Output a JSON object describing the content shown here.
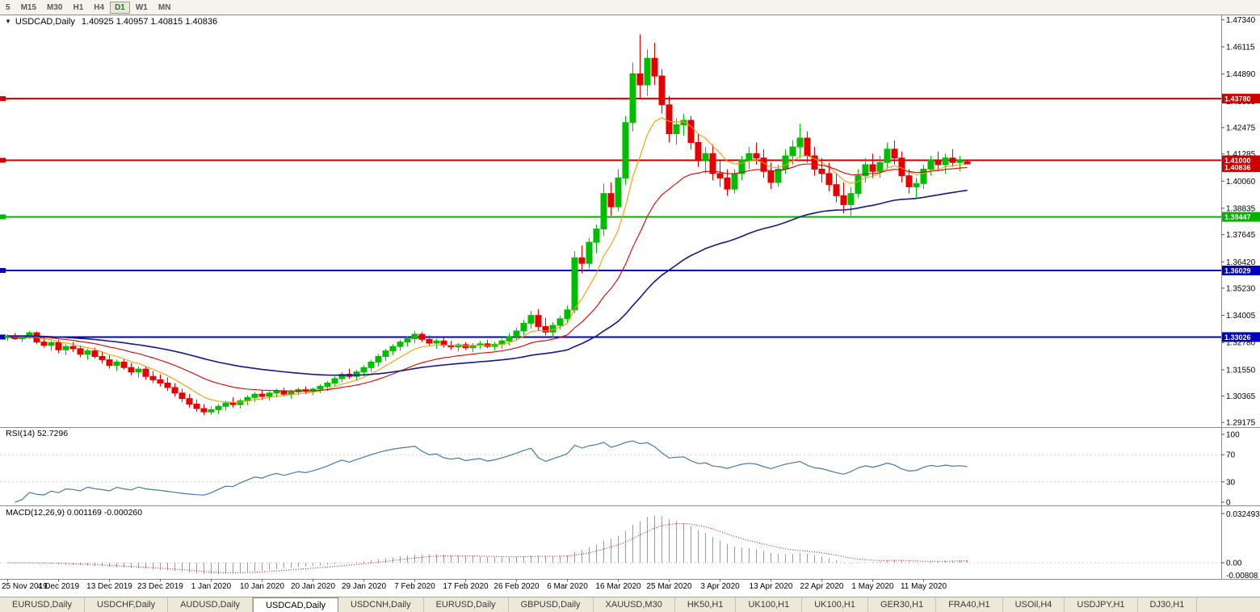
{
  "toolbar": {
    "timeframes": [
      {
        "label": "5",
        "active": false
      },
      {
        "label": "M15",
        "active": false
      },
      {
        "label": "M30",
        "active": false
      },
      {
        "label": "H1",
        "active": false
      },
      {
        "label": "H4",
        "active": false
      },
      {
        "label": "D1",
        "active": true
      },
      {
        "label": "W1",
        "active": false
      },
      {
        "label": "MN",
        "active": false
      }
    ]
  },
  "header": {
    "dropdown_icon": "▼",
    "symbol": "USDCAD,Daily",
    "quote": "1.40925 1.40957 1.40815 1.40836"
  },
  "labels": {
    "rsi": "RSI(14) 52.7296",
    "macd": "MACD(12,26,9) 0.001169 -0.000260"
  },
  "tabs": {
    "items": [
      {
        "label": "EURUSD,Daily",
        "active": false
      },
      {
        "label": "USDCHF,Daily",
        "active": false
      },
      {
        "label": "AUDUSD,Daily",
        "active": false
      },
      {
        "label": "USDCAD,Daily",
        "active": true
      },
      {
        "label": "USDCNH,Daily",
        "active": false
      },
      {
        "label": "EURUSD,Daily",
        "active": false
      },
      {
        "label": "GBPUSD,Daily",
        "active": false
      },
      {
        "label": "XAUUSD,M30",
        "active": false
      },
      {
        "label": "HK50,H1",
        "active": false
      },
      {
        "label": "UK100,H1",
        "active": false
      },
      {
        "label": "UK100,H1",
        "active": false
      },
      {
        "label": "GER30,H1",
        "active": false
      },
      {
        "label": "FRA40,H1",
        "active": false
      },
      {
        "label": "USOil,H4",
        "active": false
      },
      {
        "label": "USDJPY,H1",
        "active": false
      },
      {
        "label": "DJ30,H1",
        "active": false
      }
    ]
  },
  "chart_data": {
    "type": "candlestick",
    "symbol": "USDCAD",
    "timeframe": "Daily",
    "current_bar": {
      "open": "1.40925",
      "high": "1.40957",
      "low": "1.40815",
      "close": "1.40836"
    },
    "y_range": [
      1.29,
      1.475
    ],
    "y_ticks": [
      "1.47340",
      "1.46115",
      "1.44890",
      "1.43665",
      "1.42475",
      "1.41285",
      "1.40060",
      "1.38835",
      "1.37645",
      "1.36420",
      "1.35230",
      "1.34005",
      "1.32780",
      "1.31550",
      "1.30365",
      "1.29175"
    ],
    "x_labels": [
      "25 Nov 2019",
      "4 Dec 2019",
      "13 Dec 2019",
      "23 Dec 2019",
      "1 Jan 2020",
      "10 Jan 2020",
      "20 Jan 2020",
      "29 Jan 2020",
      "7 Feb 2020",
      "17 Feb 2020",
      "26 Feb 2020",
      "6 Mar 2020",
      "16 Mar 2020",
      "25 Mar 2020",
      "3 Apr 2020",
      "13 Apr 2020",
      "22 Apr 2020",
      "1 May 2020",
      "11 May 2020"
    ],
    "bars_per_label": 7,
    "hlines": [
      {
        "price": 1.4378,
        "label": "1.43780",
        "color": "#cc0000"
      },
      {
        "price": 1.41,
        "label": "1.41000",
        "color": "#cc0000"
      },
      {
        "price": 1.38447,
        "label": "1.38447",
        "color": "#00b400"
      },
      {
        "price": 1.36029,
        "label": "1.36029",
        "color": "#0000bb"
      },
      {
        "price": 1.33026,
        "label": "1.33026",
        "color": "#0000bb"
      }
    ],
    "current_price": {
      "price": 1.40836,
      "label": "1.40836",
      "color": "#cc0000"
    },
    "moving_averages": [
      {
        "period": 8,
        "color": "#ff9900"
      },
      {
        "period": 21,
        "color": "#dd0000"
      },
      {
        "period": 55,
        "color": "#16168f"
      }
    ],
    "rsi": {
      "period": 14,
      "value": 52.7296,
      "ticks": [
        "100",
        "70",
        "30",
        "0"
      ],
      "levels": [
        70,
        30
      ],
      "color": "#4779ab"
    },
    "macd": {
      "fast": 12,
      "slow": 26,
      "signal": 9,
      "main_value": 0.001169,
      "signal_value": -0.00026,
      "ticks": [
        "0.032493",
        "0.00",
        "-0.00808"
      ],
      "hist_color": "#9a9a9a",
      "signal_color": "#cc0000"
    },
    "colors": {
      "bull": "#00bd00",
      "bear": "#e60000",
      "background": "#ffffff",
      "axis_line": "#8c8c8c"
    },
    "ohlc": [
      [
        1.33,
        1.3315,
        1.3285,
        1.3308
      ],
      [
        1.3308,
        1.332,
        1.329,
        1.3295
      ],
      [
        1.3295,
        1.331,
        1.328,
        1.3302
      ],
      [
        1.3302,
        1.333,
        1.3295,
        1.3322
      ],
      [
        1.3322,
        1.3328,
        1.327,
        1.328
      ],
      [
        1.328,
        1.33,
        1.3255,
        1.3265
      ],
      [
        1.3265,
        1.3285,
        1.324,
        1.3278
      ],
      [
        1.3278,
        1.329,
        1.323,
        1.3245
      ],
      [
        1.3245,
        1.327,
        1.322,
        1.326
      ],
      [
        1.326,
        1.328,
        1.3235,
        1.325
      ],
      [
        1.325,
        1.3265,
        1.321,
        1.3225
      ],
      [
        1.3225,
        1.325,
        1.32,
        1.324
      ],
      [
        1.324,
        1.3255,
        1.3205,
        1.3215
      ],
      [
        1.3215,
        1.3235,
        1.3185,
        1.32
      ],
      [
        1.32,
        1.322,
        1.316,
        1.3175
      ],
      [
        1.3175,
        1.32,
        1.315,
        1.319
      ],
      [
        1.319,
        1.3205,
        1.3155,
        1.3165
      ],
      [
        1.3165,
        1.3185,
        1.313,
        1.3145
      ],
      [
        1.3145,
        1.317,
        1.312,
        1.3158
      ],
      [
        1.3158,
        1.317,
        1.311,
        1.3125
      ],
      [
        1.3125,
        1.315,
        1.3095,
        1.311
      ],
      [
        1.311,
        1.3135,
        1.308,
        1.3095
      ],
      [
        1.3095,
        1.312,
        1.306,
        1.3075
      ],
      [
        1.3075,
        1.3095,
        1.3035,
        1.305
      ],
      [
        1.305,
        1.307,
        1.301,
        1.3025
      ],
      [
        1.3025,
        1.3045,
        1.2985,
        1.3
      ],
      [
        1.3,
        1.302,
        1.2965,
        1.298
      ],
      [
        1.298,
        1.3,
        1.295,
        1.2965
      ],
      [
        1.2965,
        1.299,
        1.2952,
        1.2975
      ],
      [
        1.2975,
        1.3,
        1.2955,
        1.299
      ],
      [
        1.299,
        1.3015,
        1.297,
        1.3005
      ],
      [
        1.3005,
        1.303,
        1.2985,
        1.2998
      ],
      [
        1.2998,
        1.3025,
        1.298,
        1.3015
      ],
      [
        1.3015,
        1.304,
        1.2995,
        1.303
      ],
      [
        1.303,
        1.3055,
        1.301,
        1.3045
      ],
      [
        1.3045,
        1.306,
        1.302,
        1.3035
      ],
      [
        1.3035,
        1.306,
        1.3015,
        1.305
      ],
      [
        1.305,
        1.307,
        1.303,
        1.306
      ],
      [
        1.306,
        1.3075,
        1.3035,
        1.3045
      ],
      [
        1.3045,
        1.3065,
        1.3025,
        1.3055
      ],
      [
        1.3055,
        1.3075,
        1.304,
        1.3065
      ],
      [
        1.3065,
        1.308,
        1.3045,
        1.3058
      ],
      [
        1.3058,
        1.3075,
        1.304,
        1.3068
      ],
      [
        1.3068,
        1.309,
        1.305,
        1.308
      ],
      [
        1.308,
        1.3105,
        1.306,
        1.3095
      ],
      [
        1.3095,
        1.3125,
        1.308,
        1.3115
      ],
      [
        1.3115,
        1.3145,
        1.31,
        1.3135
      ],
      [
        1.3135,
        1.316,
        1.3115,
        1.3125
      ],
      [
        1.3125,
        1.3155,
        1.3105,
        1.3145
      ],
      [
        1.3145,
        1.3175,
        1.3125,
        1.3165
      ],
      [
        1.3165,
        1.32,
        1.3145,
        1.319
      ],
      [
        1.319,
        1.3225,
        1.317,
        1.3215
      ],
      [
        1.3215,
        1.325,
        1.3195,
        1.324
      ],
      [
        1.324,
        1.327,
        1.322,
        1.326
      ],
      [
        1.326,
        1.329,
        1.324,
        1.328
      ],
      [
        1.328,
        1.3305,
        1.326,
        1.3295
      ],
      [
        1.3295,
        1.333,
        1.3275,
        1.3315
      ],
      [
        1.3315,
        1.3325,
        1.328,
        1.3292
      ],
      [
        1.3292,
        1.331,
        1.3265,
        1.3275
      ],
      [
        1.3275,
        1.3295,
        1.325,
        1.3285
      ],
      [
        1.3285,
        1.33,
        1.3255,
        1.3265
      ],
      [
        1.3265,
        1.3285,
        1.3245,
        1.3258
      ],
      [
        1.3258,
        1.3275,
        1.3238,
        1.3268
      ],
      [
        1.3268,
        1.328,
        1.3245,
        1.3255
      ],
      [
        1.3255,
        1.3275,
        1.3235,
        1.3265
      ],
      [
        1.3265,
        1.3285,
        1.3248,
        1.3272
      ],
      [
        1.3272,
        1.329,
        1.3252,
        1.326
      ],
      [
        1.326,
        1.328,
        1.324,
        1.327
      ],
      [
        1.327,
        1.3295,
        1.325,
        1.3285
      ],
      [
        1.3285,
        1.332,
        1.3265,
        1.3305
      ],
      [
        1.3305,
        1.3345,
        1.3285,
        1.333
      ],
      [
        1.333,
        1.338,
        1.331,
        1.3365
      ],
      [
        1.3365,
        1.342,
        1.334,
        1.34
      ],
      [
        1.34,
        1.343,
        1.333,
        1.335
      ],
      [
        1.335,
        1.339,
        1.331,
        1.3325
      ],
      [
        1.3325,
        1.337,
        1.33,
        1.3355
      ],
      [
        1.3355,
        1.34,
        1.3335,
        1.3385
      ],
      [
        1.3385,
        1.3445,
        1.3365,
        1.3425
      ],
      [
        1.3425,
        1.369,
        1.341,
        1.366
      ],
      [
        1.366,
        1.3715,
        1.359,
        1.3635
      ],
      [
        1.3635,
        1.375,
        1.361,
        1.373
      ],
      [
        1.373,
        1.381,
        1.368,
        1.379
      ],
      [
        1.379,
        1.3995,
        1.376,
        1.395
      ],
      [
        1.395,
        1.4,
        1.385,
        1.389
      ],
      [
        1.389,
        1.406,
        1.387,
        1.402
      ],
      [
        1.402,
        1.43,
        1.399,
        1.427
      ],
      [
        1.427,
        1.454,
        1.423,
        1.449
      ],
      [
        1.449,
        1.4668,
        1.438,
        1.444
      ],
      [
        1.444,
        1.46,
        1.439,
        1.456
      ],
      [
        1.456,
        1.463,
        1.444,
        1.448
      ],
      [
        1.448,
        1.451,
        1.431,
        1.435
      ],
      [
        1.435,
        1.439,
        1.418,
        1.422
      ],
      [
        1.422,
        1.429,
        1.417,
        1.426
      ],
      [
        1.426,
        1.431,
        1.421,
        1.428
      ],
      [
        1.428,
        1.43,
        1.415,
        1.418
      ],
      [
        1.418,
        1.422,
        1.407,
        1.41
      ],
      [
        1.41,
        1.416,
        1.404,
        1.413
      ],
      [
        1.413,
        1.417,
        1.401,
        1.404
      ],
      [
        1.404,
        1.41,
        1.398,
        1.402
      ],
      [
        1.402,
        1.406,
        1.394,
        1.397
      ],
      [
        1.397,
        1.406,
        1.395,
        1.404
      ],
      [
        1.404,
        1.412,
        1.401,
        1.41
      ],
      [
        1.41,
        1.416,
        1.406,
        1.413
      ],
      [
        1.413,
        1.418,
        1.408,
        1.411
      ],
      [
        1.411,
        1.415,
        1.402,
        1.405
      ],
      [
        1.405,
        1.409,
        1.397,
        1.4
      ],
      [
        1.4,
        1.408,
        1.398,
        1.406
      ],
      [
        1.406,
        1.415,
        1.404,
        1.412
      ],
      [
        1.412,
        1.419,
        1.408,
        1.416
      ],
      [
        1.416,
        1.4265,
        1.411,
        1.42
      ],
      [
        1.42,
        1.423,
        1.409,
        1.412
      ],
      [
        1.412,
        1.416,
        1.403,
        1.406
      ],
      [
        1.406,
        1.411,
        1.4,
        1.404
      ],
      [
        1.404,
        1.409,
        1.396,
        1.399
      ],
      [
        1.399,
        1.404,
        1.391,
        1.394
      ],
      [
        1.394,
        1.4,
        1.386,
        1.39
      ],
      [
        1.39,
        1.398,
        1.385,
        1.395
      ],
      [
        1.395,
        1.406,
        1.393,
        1.403
      ],
      [
        1.403,
        1.411,
        1.4,
        1.408
      ],
      [
        1.408,
        1.413,
        1.402,
        1.405
      ],
      [
        1.405,
        1.412,
        1.402,
        1.409
      ],
      [
        1.409,
        1.418,
        1.406,
        1.415
      ],
      [
        1.415,
        1.419,
        1.408,
        1.411
      ],
      [
        1.411,
        1.414,
        1.4,
        1.403
      ],
      [
        1.403,
        1.406,
        1.395,
        1.398
      ],
      [
        1.398,
        1.402,
        1.393,
        1.3995
      ],
      [
        1.3995,
        1.408,
        1.397,
        1.406
      ],
      [
        1.406,
        1.412,
        1.403,
        1.41
      ],
      [
        1.41,
        1.414,
        1.405,
        1.408
      ],
      [
        1.408,
        1.413,
        1.404,
        1.411
      ],
      [
        1.411,
        1.415,
        1.407,
        1.409
      ],
      [
        1.409,
        1.412,
        1.405,
        1.41
      ],
      [
        1.40925,
        1.40957,
        1.40815,
        1.40836
      ]
    ]
  }
}
